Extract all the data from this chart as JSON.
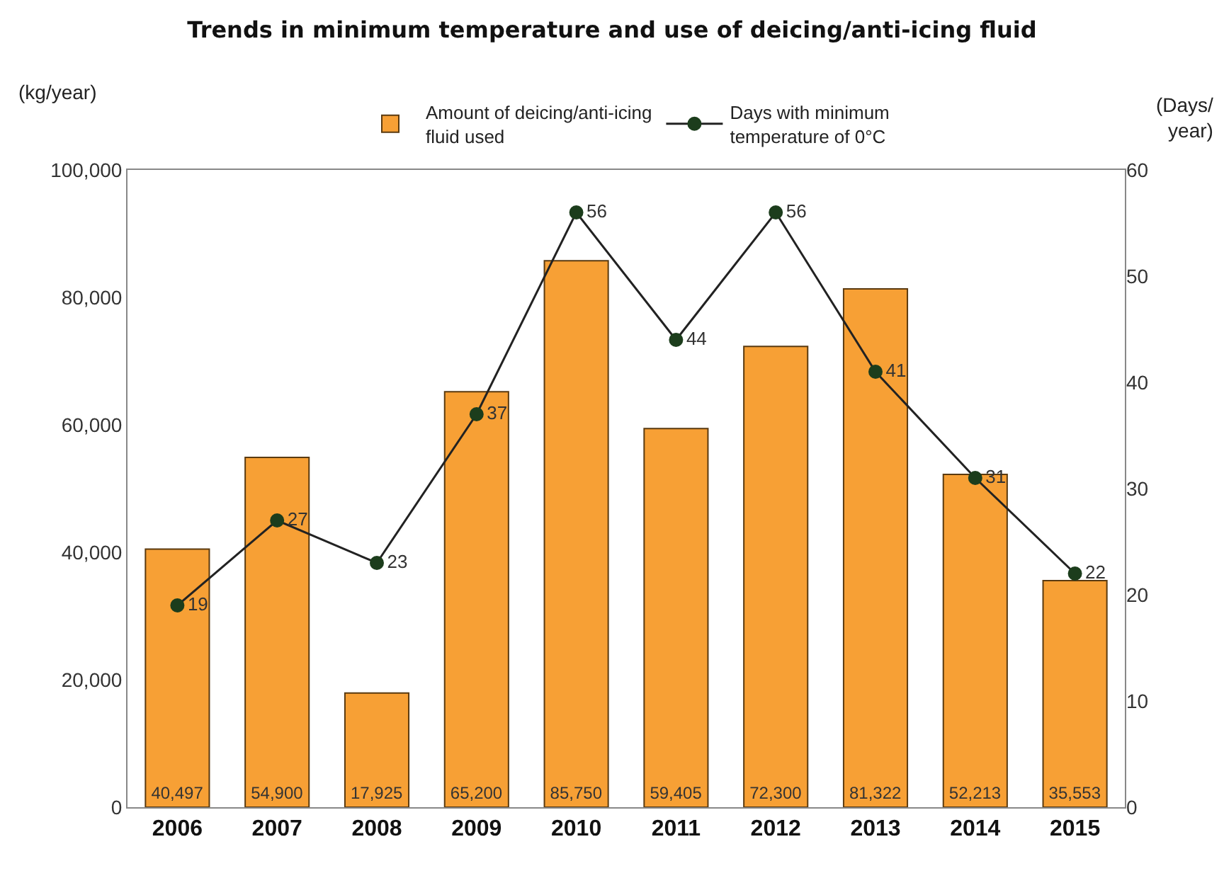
{
  "chart_data": {
    "type": "bar",
    "title": "Trends in minimum temperature and use of deicing/anti-icing fluid",
    "ylabel": "(kg/year)",
    "y2label": "(Days/ year)",
    "categories": [
      "2006",
      "2007",
      "2008",
      "2009",
      "2010",
      "2011",
      "2012",
      "2013",
      "2014",
      "2015"
    ],
    "series": [
      {
        "name": "Amount of deicing/anti-icing fluid used",
        "color": "#f7a035",
        "values": [
          40497,
          54900,
          17925,
          65200,
          85750,
          59405,
          72300,
          81322,
          52213,
          35553
        ],
        "value_labels": [
          "40,497",
          "54,900",
          "17,925",
          "65,200",
          "85,750",
          "59,405",
          "72,300",
          "81,322",
          "52,213",
          "35,553"
        ]
      },
      {
        "name": "Days with minimum temperature of 0°C",
        "type": "line",
        "axis": "y2",
        "color": "#1c3d1c",
        "marker": "circle",
        "values": [
          19,
          27,
          23,
          37,
          56,
          44,
          56,
          41,
          31,
          22
        ],
        "value_labels": [
          "19",
          "27",
          "23",
          "37",
          "56",
          "44",
          "56",
          "41",
          "31",
          "22"
        ]
      }
    ],
    "ylim": [
      0,
      100000
    ],
    "yticks": [
      {
        "value": 0,
        "label": "0"
      },
      {
        "value": 20000,
        "label": "20,000"
      },
      {
        "value": 40000,
        "label": "40,000"
      },
      {
        "value": 60000,
        "label": "60,000"
      },
      {
        "value": 80000,
        "label": "80,000"
      },
      {
        "value": 100000,
        "label": "100,000"
      }
    ],
    "y2lim": [
      0,
      60
    ],
    "y2ticks": [
      0,
      10,
      20,
      30,
      40,
      50,
      60
    ],
    "grid": false,
    "legend": "top"
  }
}
